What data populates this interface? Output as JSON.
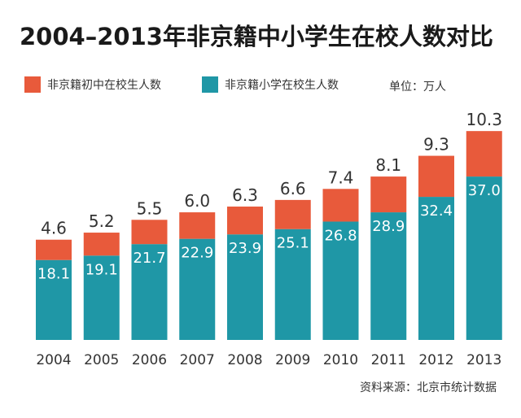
{
  "title": "2004–2013年非京籍中小学生在校人数对比",
  "legend": {
    "middle_label": "非京籍初中在校生人数",
    "primary_label": "非京籍小学在校生人数",
    "unit": "单位：万人"
  },
  "source": "资料来源：北京市统计数据",
  "colors": {
    "primary": "#1f97a6",
    "middle": "#e85a3b",
    "text": "#333333"
  },
  "chart_data": {
    "type": "bar",
    "stacked": true,
    "title": "2004–2013年非京籍中小学生在校人数对比",
    "categories": [
      "2004",
      "2005",
      "2006",
      "2007",
      "2008",
      "2009",
      "2010",
      "2011",
      "2012",
      "2013"
    ],
    "series": [
      {
        "name": "非京籍小学在校生人数",
        "values": [
          18.1,
          19.1,
          21.7,
          22.9,
          23.9,
          25.1,
          26.8,
          28.9,
          32.4,
          37.0
        ],
        "labels": [
          "18.1",
          "19.1",
          "21.7",
          "22.9",
          "23.9",
          "25.1",
          "26.8",
          "28.9",
          "32.4",
          "37.0"
        ]
      },
      {
        "name": "非京籍初中在校生人数",
        "values": [
          4.6,
          5.2,
          5.5,
          6.0,
          6.3,
          6.6,
          7.4,
          8.1,
          9.3,
          10.3
        ],
        "labels": [
          "4.6",
          "5.2",
          "5.5",
          "6.0",
          "6.3",
          "6.6",
          "7.4",
          "8.1",
          "9.3",
          "10.3"
        ]
      }
    ],
    "ylim": [
      0,
      50
    ],
    "grid": false,
    "legend_position": "top"
  }
}
